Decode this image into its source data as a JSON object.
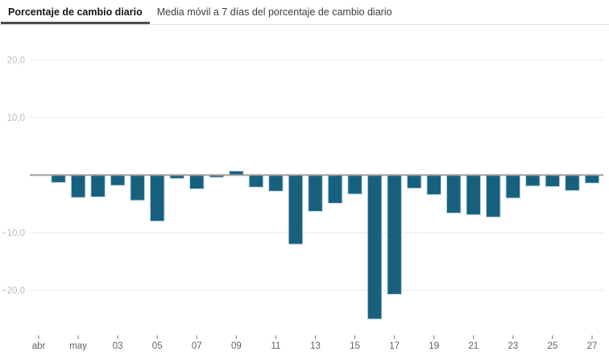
{
  "tabs": [
    {
      "label": "Porcentaje de cambio diario",
      "active": true
    },
    {
      "label": "Media móvil a 7 días del porcentaje de cambio diario",
      "active": false
    }
  ],
  "chart_data": {
    "type": "bar",
    "title": "",
    "xlabel": "",
    "ylabel": "",
    "series_name": "Porcentaje de cambio diario",
    "grid": true,
    "legend": "none",
    "ylim": [
      -27,
      22
    ],
    "y_ticks": [
      {
        "value": 20,
        "label": "20,0"
      },
      {
        "value": 10,
        "label": "10,0"
      },
      {
        "value": -10,
        "label": "−10,0"
      },
      {
        "value": -20,
        "label": "−20,0"
      }
    ],
    "x_ticks": [
      {
        "day": 0,
        "label": "abr"
      },
      {
        "day": 2,
        "label": "may"
      },
      {
        "day": 4,
        "label": "03"
      },
      {
        "day": 6,
        "label": "05"
      },
      {
        "day": 8,
        "label": "07"
      },
      {
        "day": 10,
        "label": "09"
      },
      {
        "day": 12,
        "label": "11"
      },
      {
        "day": 14,
        "label": "13"
      },
      {
        "day": 16,
        "label": "15"
      },
      {
        "day": 18,
        "label": "17"
      },
      {
        "day": 20,
        "label": "19"
      },
      {
        "day": 22,
        "label": "21"
      },
      {
        "day": 24,
        "label": "23"
      },
      {
        "day": 26,
        "label": "25"
      },
      {
        "day": 28,
        "label": "27"
      }
    ],
    "bars": {
      "first_day": 1,
      "values": [
        -1.3,
        -3.9,
        -3.8,
        -1.8,
        -4.4,
        -8.0,
        -0.6,
        -2.4,
        -0.4,
        0.7,
        -2.1,
        -2.8,
        -12.0,
        -6.3,
        -4.9,
        -3.3,
        -25.0,
        -20.7,
        -2.3,
        -3.4,
        -6.6,
        -6.9,
        -7.3,
        -4.0,
        -1.9,
        -2.0,
        -2.7,
        -1.4
      ]
    },
    "colors": {
      "bar": "#17617f",
      "bar_edge": "#c2d7e0",
      "zero_line": "#9e9e9e",
      "grid": "#e9e9e9",
      "y_label": "#bcbcbc",
      "x_label": "#616161",
      "tick": "#757575"
    }
  }
}
